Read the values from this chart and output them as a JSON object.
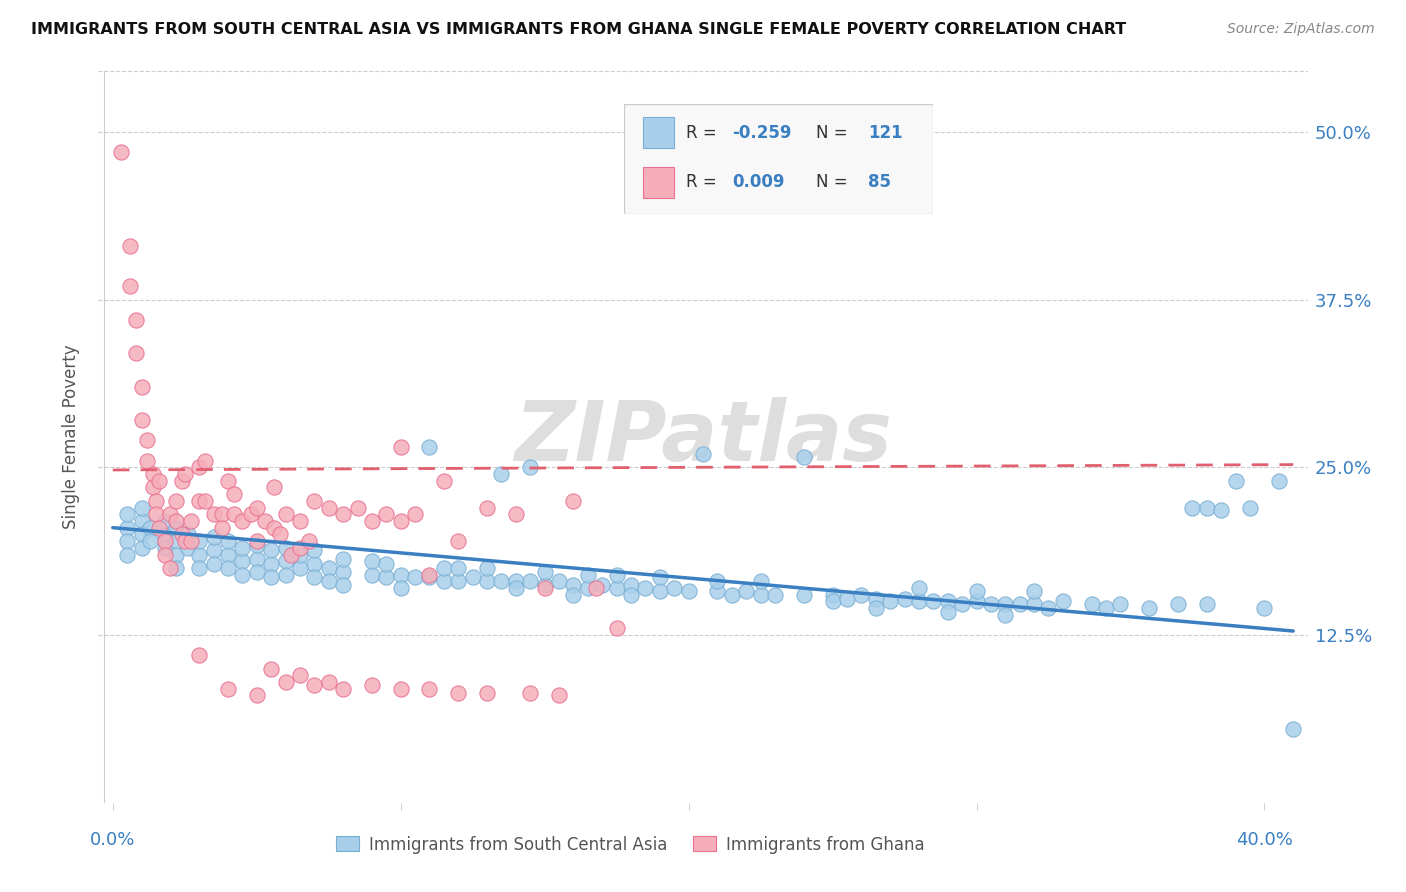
{
  "title": "IMMIGRANTS FROM SOUTH CENTRAL ASIA VS IMMIGRANTS FROM GHANA SINGLE FEMALE POVERTY CORRELATION CHART",
  "source": "Source: ZipAtlas.com",
  "ylabel": "Single Female Poverty",
  "ytick_labels": [
    "50.0%",
    "37.5%",
    "25.0%",
    "12.5%"
  ],
  "ytick_values": [
    0.5,
    0.375,
    0.25,
    0.125
  ],
  "xlim": [
    -0.005,
    0.415
  ],
  "ylim": [
    0.0,
    0.545
  ],
  "legend_blue_label": "Immigrants from South Central Asia",
  "legend_pink_label": "Immigrants from Ghana",
  "blue_color": "#A8CFEA",
  "pink_color": "#F5AEBA",
  "blue_edge_color": "#7AAFD4",
  "pink_edge_color": "#E87090",
  "trend_blue_color": "#3A7FC1",
  "trend_pink_color": "#E06070",
  "watermark": "ZIPatlas",
  "blue_scatter": [
    [
      0.005,
      0.205
    ],
    [
      0.005,
      0.195
    ],
    [
      0.005,
      0.185
    ],
    [
      0.005,
      0.215
    ],
    [
      0.01,
      0.21
    ],
    [
      0.01,
      0.2
    ],
    [
      0.01,
      0.19
    ],
    [
      0.01,
      0.22
    ],
    [
      0.013,
      0.205
    ],
    [
      0.013,
      0.195
    ],
    [
      0.018,
      0.2
    ],
    [
      0.018,
      0.19
    ],
    [
      0.018,
      0.21
    ],
    [
      0.022,
      0.195
    ],
    [
      0.022,
      0.185
    ],
    [
      0.022,
      0.205
    ],
    [
      0.022,
      0.175
    ],
    [
      0.026,
      0.19
    ],
    [
      0.026,
      0.2
    ],
    [
      0.03,
      0.185
    ],
    [
      0.03,
      0.195
    ],
    [
      0.03,
      0.175
    ],
    [
      0.035,
      0.188
    ],
    [
      0.035,
      0.178
    ],
    [
      0.035,
      0.198
    ],
    [
      0.04,
      0.185
    ],
    [
      0.04,
      0.175
    ],
    [
      0.04,
      0.195
    ],
    [
      0.045,
      0.18
    ],
    [
      0.045,
      0.19
    ],
    [
      0.045,
      0.17
    ],
    [
      0.05,
      0.182
    ],
    [
      0.05,
      0.172
    ],
    [
      0.05,
      0.192
    ],
    [
      0.055,
      0.178
    ],
    [
      0.055,
      0.188
    ],
    [
      0.055,
      0.168
    ],
    [
      0.06,
      0.18
    ],
    [
      0.06,
      0.17
    ],
    [
      0.06,
      0.19
    ],
    [
      0.065,
      0.175
    ],
    [
      0.065,
      0.185
    ],
    [
      0.07,
      0.178
    ],
    [
      0.07,
      0.168
    ],
    [
      0.07,
      0.188
    ],
    [
      0.075,
      0.175
    ],
    [
      0.075,
      0.165
    ],
    [
      0.08,
      0.172
    ],
    [
      0.08,
      0.182
    ],
    [
      0.08,
      0.162
    ],
    [
      0.09,
      0.17
    ],
    [
      0.09,
      0.18
    ],
    [
      0.095,
      0.168
    ],
    [
      0.095,
      0.178
    ],
    [
      0.1,
      0.17
    ],
    [
      0.1,
      0.16
    ],
    [
      0.105,
      0.168
    ],
    [
      0.11,
      0.265
    ],
    [
      0.11,
      0.168
    ],
    [
      0.115,
      0.165
    ],
    [
      0.115,
      0.175
    ],
    [
      0.12,
      0.165
    ],
    [
      0.12,
      0.175
    ],
    [
      0.125,
      0.168
    ],
    [
      0.13,
      0.165
    ],
    [
      0.13,
      0.175
    ],
    [
      0.135,
      0.245
    ],
    [
      0.135,
      0.165
    ],
    [
      0.14,
      0.165
    ],
    [
      0.14,
      0.16
    ],
    [
      0.145,
      0.25
    ],
    [
      0.145,
      0.165
    ],
    [
      0.15,
      0.162
    ],
    [
      0.15,
      0.172
    ],
    [
      0.155,
      0.165
    ],
    [
      0.16,
      0.162
    ],
    [
      0.16,
      0.155
    ],
    [
      0.165,
      0.16
    ],
    [
      0.165,
      0.17
    ],
    [
      0.17,
      0.162
    ],
    [
      0.175,
      0.16
    ],
    [
      0.175,
      0.17
    ],
    [
      0.18,
      0.162
    ],
    [
      0.18,
      0.155
    ],
    [
      0.185,
      0.16
    ],
    [
      0.19,
      0.158
    ],
    [
      0.19,
      0.168
    ],
    [
      0.195,
      0.16
    ],
    [
      0.2,
      0.158
    ],
    [
      0.205,
      0.26
    ],
    [
      0.21,
      0.158
    ],
    [
      0.21,
      0.165
    ],
    [
      0.215,
      0.155
    ],
    [
      0.22,
      0.158
    ],
    [
      0.225,
      0.155
    ],
    [
      0.225,
      0.165
    ],
    [
      0.23,
      0.155
    ],
    [
      0.24,
      0.258
    ],
    [
      0.24,
      0.155
    ],
    [
      0.25,
      0.155
    ],
    [
      0.25,
      0.15
    ],
    [
      0.255,
      0.152
    ],
    [
      0.26,
      0.155
    ],
    [
      0.265,
      0.152
    ],
    [
      0.265,
      0.145
    ],
    [
      0.27,
      0.15
    ],
    [
      0.275,
      0.152
    ],
    [
      0.28,
      0.15
    ],
    [
      0.28,
      0.16
    ],
    [
      0.285,
      0.15
    ],
    [
      0.29,
      0.15
    ],
    [
      0.29,
      0.142
    ],
    [
      0.295,
      0.148
    ],
    [
      0.3,
      0.15
    ],
    [
      0.3,
      0.158
    ],
    [
      0.305,
      0.148
    ],
    [
      0.31,
      0.148
    ],
    [
      0.31,
      0.14
    ],
    [
      0.315,
      0.148
    ],
    [
      0.32,
      0.148
    ],
    [
      0.32,
      0.158
    ],
    [
      0.325,
      0.145
    ],
    [
      0.33,
      0.15
    ],
    [
      0.34,
      0.148
    ],
    [
      0.345,
      0.145
    ],
    [
      0.35,
      0.148
    ],
    [
      0.36,
      0.145
    ],
    [
      0.37,
      0.148
    ],
    [
      0.375,
      0.22
    ],
    [
      0.38,
      0.22
    ],
    [
      0.38,
      0.148
    ],
    [
      0.385,
      0.218
    ],
    [
      0.39,
      0.24
    ],
    [
      0.395,
      0.22
    ],
    [
      0.4,
      0.145
    ],
    [
      0.405,
      0.24
    ],
    [
      0.41,
      0.055
    ]
  ],
  "pink_scatter": [
    [
      0.003,
      0.485
    ],
    [
      0.006,
      0.415
    ],
    [
      0.006,
      0.385
    ],
    [
      0.008,
      0.36
    ],
    [
      0.008,
      0.335
    ],
    [
      0.01,
      0.31
    ],
    [
      0.01,
      0.285
    ],
    [
      0.012,
      0.27
    ],
    [
      0.012,
      0.255
    ],
    [
      0.014,
      0.245
    ],
    [
      0.014,
      0.235
    ],
    [
      0.015,
      0.225
    ],
    [
      0.015,
      0.215
    ],
    [
      0.016,
      0.205
    ],
    [
      0.016,
      0.24
    ],
    [
      0.018,
      0.195
    ],
    [
      0.018,
      0.185
    ],
    [
      0.02,
      0.175
    ],
    [
      0.02,
      0.215
    ],
    [
      0.022,
      0.21
    ],
    [
      0.022,
      0.225
    ],
    [
      0.024,
      0.2
    ],
    [
      0.024,
      0.24
    ],
    [
      0.025,
      0.195
    ],
    [
      0.025,
      0.245
    ],
    [
      0.027,
      0.195
    ],
    [
      0.027,
      0.21
    ],
    [
      0.03,
      0.25
    ],
    [
      0.03,
      0.225
    ],
    [
      0.032,
      0.255
    ],
    [
      0.032,
      0.225
    ],
    [
      0.035,
      0.215
    ],
    [
      0.038,
      0.215
    ],
    [
      0.038,
      0.205
    ],
    [
      0.04,
      0.24
    ],
    [
      0.042,
      0.23
    ],
    [
      0.042,
      0.215
    ],
    [
      0.045,
      0.21
    ],
    [
      0.048,
      0.215
    ],
    [
      0.05,
      0.195
    ],
    [
      0.05,
      0.22
    ],
    [
      0.053,
      0.21
    ],
    [
      0.056,
      0.205
    ],
    [
      0.056,
      0.235
    ],
    [
      0.058,
      0.2
    ],
    [
      0.06,
      0.215
    ],
    [
      0.062,
      0.185
    ],
    [
      0.065,
      0.19
    ],
    [
      0.065,
      0.21
    ],
    [
      0.068,
      0.195
    ],
    [
      0.07,
      0.225
    ],
    [
      0.075,
      0.22
    ],
    [
      0.08,
      0.215
    ],
    [
      0.085,
      0.22
    ],
    [
      0.09,
      0.21
    ],
    [
      0.095,
      0.215
    ],
    [
      0.1,
      0.21
    ],
    [
      0.1,
      0.265
    ],
    [
      0.105,
      0.215
    ],
    [
      0.11,
      0.17
    ],
    [
      0.115,
      0.24
    ],
    [
      0.12,
      0.195
    ],
    [
      0.13,
      0.22
    ],
    [
      0.14,
      0.215
    ],
    [
      0.15,
      0.16
    ],
    [
      0.16,
      0.225
    ],
    [
      0.168,
      0.16
    ],
    [
      0.175,
      0.13
    ],
    [
      0.03,
      0.11
    ],
    [
      0.04,
      0.085
    ],
    [
      0.05,
      0.08
    ],
    [
      0.055,
      0.1
    ],
    [
      0.06,
      0.09
    ],
    [
      0.065,
      0.095
    ],
    [
      0.07,
      0.088
    ],
    [
      0.075,
      0.09
    ],
    [
      0.08,
      0.085
    ],
    [
      0.09,
      0.088
    ],
    [
      0.1,
      0.085
    ],
    [
      0.11,
      0.085
    ],
    [
      0.12,
      0.082
    ],
    [
      0.13,
      0.082
    ],
    [
      0.145,
      0.082
    ],
    [
      0.155,
      0.08
    ]
  ]
}
